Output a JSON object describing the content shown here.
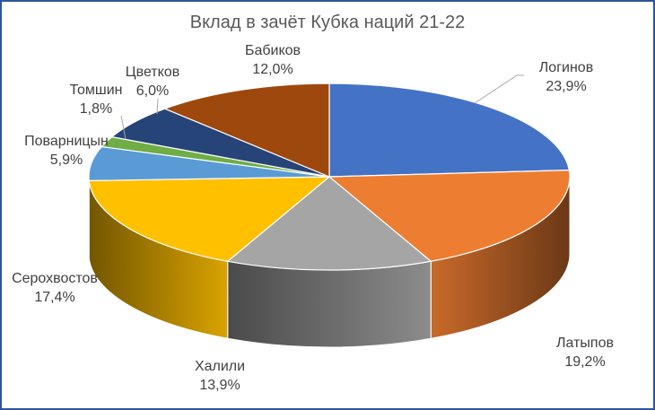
{
  "chart_data": {
    "type": "pie",
    "style": "3d",
    "title": "Вклад в зачёт Кубка наций 21-22",
    "legend": "none",
    "slices": [
      {
        "name": "Логинов",
        "value": 23.9,
        "label": "23,9%",
        "color": "#4472c4"
      },
      {
        "name": "Латыпов",
        "value": 19.2,
        "label": "19,2%",
        "color": "#ed7d31"
      },
      {
        "name": "Халили",
        "value": 13.9,
        "label": "13,9%",
        "color": "#a5a5a5"
      },
      {
        "name": "Серохвостов",
        "value": 17.4,
        "label": "17,4%",
        "color": "#ffc000"
      },
      {
        "name": "Поварницын",
        "value": 5.9,
        "label": "5,9%",
        "color": "#5b9bd5"
      },
      {
        "name": "Томшин",
        "value": 1.8,
        "label": "1,8%",
        "color": "#70ad47"
      },
      {
        "name": "Цветков",
        "value": 6.0,
        "label": "6,0%",
        "color": "#264478"
      },
      {
        "name": "Бабиков",
        "value": 12.0,
        "label": "12,0%",
        "color": "#9e480e"
      }
    ]
  }
}
